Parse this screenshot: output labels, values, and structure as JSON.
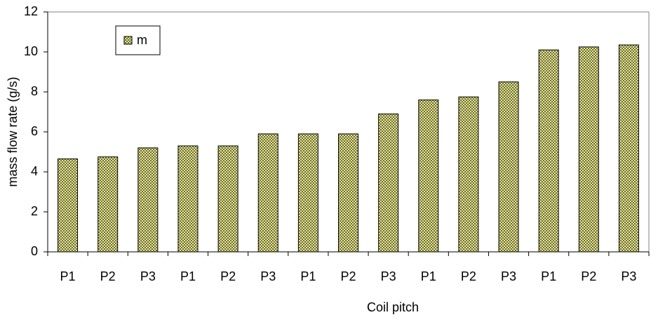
{
  "chart_data": {
    "type": "bar",
    "x_label": "Coil pitch",
    "y_label": "mass flow rate (g/s)",
    "categories": [
      "P1",
      "P2",
      "P3",
      "P1",
      "P2",
      "P3",
      "P1",
      "P2",
      "P3",
      "P1",
      "P2",
      "P3",
      "P1",
      "P2",
      "P3"
    ],
    "series": [
      {
        "name": "m",
        "color": "#6b6b2e",
        "values": [
          4.65,
          4.75,
          5.2,
          5.3,
          5.3,
          5.9,
          5.9,
          5.9,
          6.9,
          7.6,
          7.75,
          8.5,
          10.1,
          10.25,
          10.35
        ]
      }
    ],
    "ylim": [
      0,
      12
    ],
    "yticks": [
      0,
      2,
      4,
      6,
      8,
      10,
      12
    ],
    "grid": false,
    "legend": "top-left"
  }
}
